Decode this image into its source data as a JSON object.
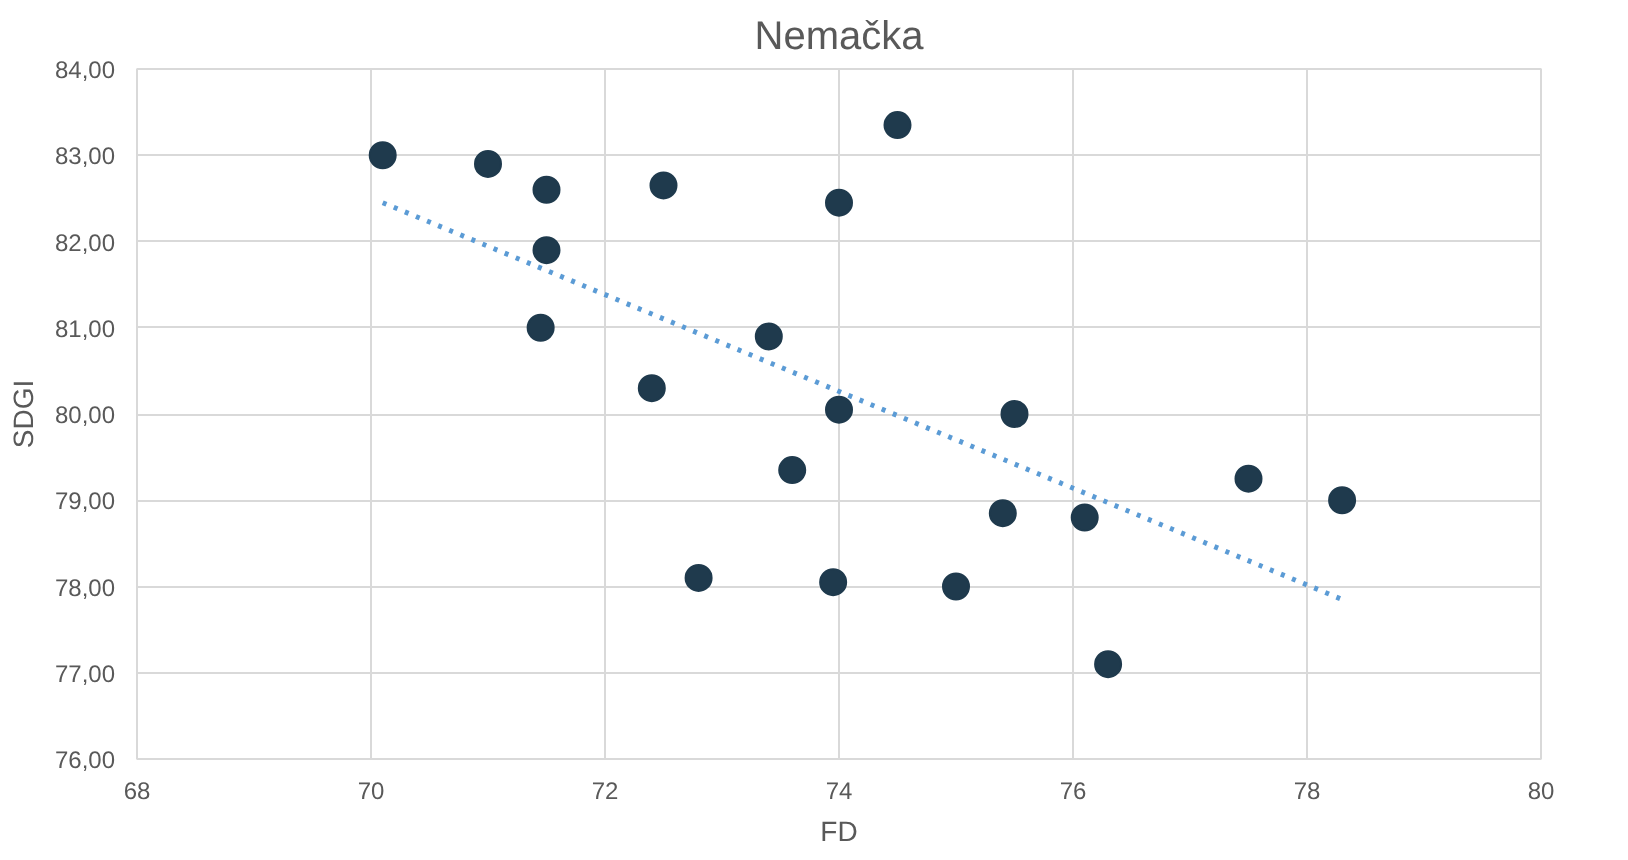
{
  "chart_data": {
    "type": "scatter",
    "title": "Nemačka",
    "xlabel": "FD",
    "ylabel": "SDGI",
    "xlim": [
      68,
      80
    ],
    "xticks": [
      68,
      70,
      72,
      74,
      76,
      78,
      80
    ],
    "ylim": [
      76,
      84
    ],
    "yticks": [
      {
        "value": 76,
        "label": "76,00"
      },
      {
        "value": 77,
        "label": "77,00"
      },
      {
        "value": 78,
        "label": "78,00"
      },
      {
        "value": 79,
        "label": "79,00"
      },
      {
        "value": 80,
        "label": "80,00"
      },
      {
        "value": 81,
        "label": "81,00"
      },
      {
        "value": 82,
        "label": "82,00"
      },
      {
        "value": 83,
        "label": "83,00"
      },
      {
        "value": 84,
        "label": "84,00"
      }
    ],
    "grid": true,
    "series": [
      {
        "marker": "circle",
        "color": "#1f3a4d",
        "x": [
          70.1,
          71.0,
          71.5,
          72.5,
          74.0,
          74.5,
          71.5,
          71.45,
          73.4,
          72.4,
          74.0,
          75.5,
          73.6,
          77.5,
          78.3,
          75.4,
          76.1,
          72.8,
          73.95,
          75.0,
          76.3
        ],
        "values": [
          83.0,
          82.9,
          82.6,
          82.65,
          82.45,
          83.35,
          81.9,
          81.0,
          80.9,
          80.3,
          80.05,
          80.0,
          79.35,
          79.25,
          79.0,
          78.85,
          78.8,
          78.1,
          78.05,
          78.0,
          77.1
        ]
      },
      {
        "type": "line",
        "color": "#5b9bd5",
        "line_style": "dotted",
        "x": [
          70.1,
          78.3
        ],
        "values": [
          82.45,
          77.85
        ]
      }
    ]
  }
}
